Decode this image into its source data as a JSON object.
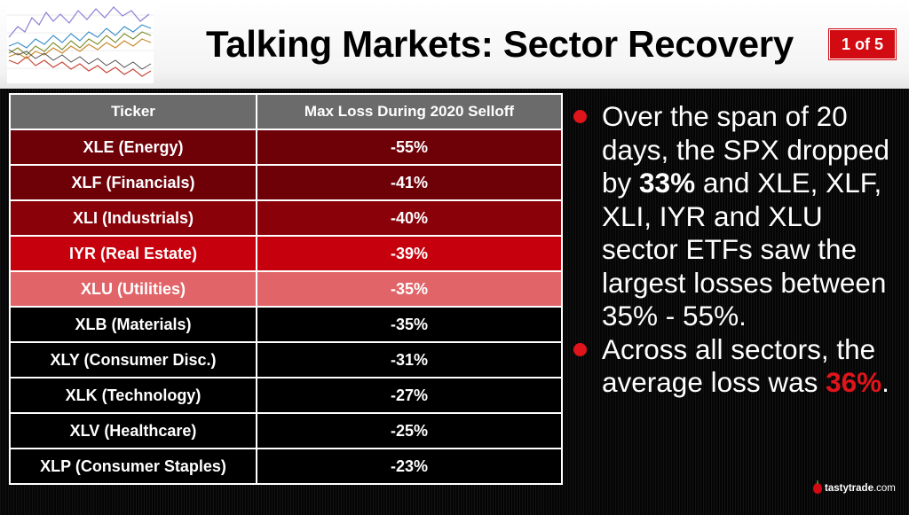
{
  "header": {
    "title": "Talking Markets: Sector Recovery",
    "page_indicator": "1 of 5",
    "thumbnail_icon": "multi-line-stock-chart-icon"
  },
  "table": {
    "headers": [
      "Ticker",
      "Max Loss During 2020 Selloff"
    ],
    "rows": [
      {
        "ticker": "XLE (Energy)",
        "loss": "-55%",
        "color": "#6e0008"
      },
      {
        "ticker": "XLF (Financials)",
        "loss": "-41%",
        "color": "#6e0008"
      },
      {
        "ticker": "XLI (Industrials)",
        "loss": "-40%",
        "color": "#8a0109"
      },
      {
        "ticker": "IYR (Real Estate)",
        "loss": "-39%",
        "color": "#c6010d"
      },
      {
        "ticker": "XLU (Utilities)",
        "loss": "-35%",
        "color": "#e06468"
      },
      {
        "ticker": "XLB (Materials)",
        "loss": "-35%",
        "color": "#000000"
      },
      {
        "ticker": "XLY (Consumer Disc.)",
        "loss": "-31%",
        "color": "#000000"
      },
      {
        "ticker": "XLK (Technology)",
        "loss": "-27%",
        "color": "#000000"
      },
      {
        "ticker": "XLV (Healthcare)",
        "loss": "-25%",
        "color": "#000000"
      },
      {
        "ticker": "XLP (Consumer Staples)",
        "loss": "-23%",
        "color": "#000000"
      }
    ]
  },
  "bullets": {
    "b1_pre": "Over the span of 20 days, the SPX dropped by ",
    "b1_strong": "33%",
    "b1_post": " and XLE, XLF, XLI, IYR and XLU sector ETFs saw the largest losses between 35% - 55%.",
    "b2_pre": "Across all sectors, the average loss was ",
    "b2_accent": "36%",
    "b2_post": "."
  },
  "brand": {
    "logo_text": "tastytrade",
    "logo_suffix": ".com",
    "accent_color": "#d20a11"
  }
}
